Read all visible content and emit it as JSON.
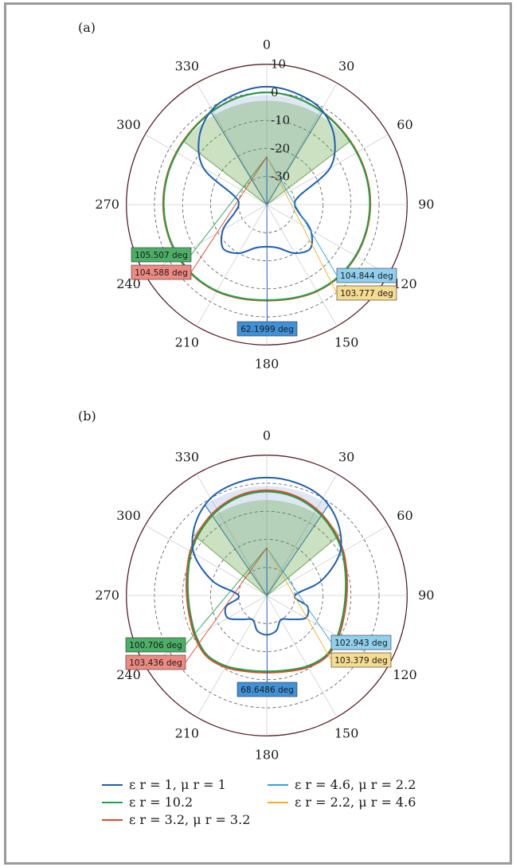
{
  "colors": {
    "series1": "#1f5fb0",
    "series2": "#22a04a",
    "series3": "#e0492b",
    "series4": "#2aa4dc",
    "series5": "#f0b024"
  },
  "legend": [
    {
      "text": "ε r = 1, μ r = 1",
      "color": "#1f5fb0"
    },
    {
      "text": "ε r = 10.2",
      "color": "#22a04a"
    },
    {
      "text": "ε r = 3.2, μ r = 3.2",
      "color": "#e0492b"
    },
    {
      "text": "ε r = 4.6, μ r = 2.2",
      "color": "#2aa4dc"
    },
    {
      "text": "ε r = 2.2, μ r = 4.6",
      "color": "#f0b024"
    }
  ],
  "chart_data": [
    {
      "type": "polar",
      "panel_label": "(a)",
      "angle_ticks": [
        "0",
        "30",
        "60",
        "90",
        "120",
        "150",
        "180",
        "210",
        "240",
        "270",
        "300",
        "330"
      ],
      "radial_ticks": [
        "10",
        "0",
        "-10",
        "-20",
        "-30"
      ],
      "rlim": [
        -40,
        10
      ],
      "grid": true,
      "beamwidth_labels": [
        {
          "text": "105.507 deg",
          "color": "#4caf67",
          "series": "series2"
        },
        {
          "text": "104.588 deg",
          "color": "#ee8a82",
          "series": "series3"
        },
        {
          "text": "104.844 deg",
          "color": "#8fd0ee",
          "series": "series4"
        },
        {
          "text": "103.777 deg",
          "color": "#f6dc90",
          "series": "series5"
        },
        {
          "text": "62.1999 deg",
          "color": "#3f91d8",
          "series": "series1"
        }
      ],
      "beamwidths_deg": {
        "series1": 62.1999,
        "series2": 105.507,
        "series3": 104.588,
        "series4": 104.844,
        "series5": 103.777
      },
      "series": [
        {
          "key": "series1",
          "theta": [
            0,
            15,
            30,
            45,
            60,
            75,
            90,
            105,
            120,
            135,
            150,
            165,
            180,
            195,
            210,
            225,
            240,
            255,
            270,
            285,
            300,
            315,
            330,
            345
          ],
          "r": [
            2,
            1,
            -1,
            -6,
            -14,
            -28,
            -30,
            -28,
            -22,
            -18,
            -20,
            -24,
            -25,
            -24,
            -20,
            -18,
            -22,
            -28,
            -30,
            -28,
            -14,
            -6,
            -1,
            1
          ]
        },
        {
          "key": "series2",
          "theta": [
            0,
            15,
            30,
            45,
            60,
            75,
            90,
            105,
            120,
            135,
            150,
            165,
            180,
            195,
            210,
            225,
            240,
            255,
            270,
            285,
            300,
            315,
            330,
            345
          ],
          "r": [
            0,
            -0.5,
            -1.5,
            -2.5,
            -3,
            -3.2,
            -3.3,
            -3.4,
            -3.5,
            -3.8,
            -4.5,
            -5.5,
            -6,
            -5.5,
            -4.5,
            -3.8,
            -3.5,
            -3.4,
            -3.3,
            -3.2,
            -3,
            -2.5,
            -1.5,
            -0.5
          ]
        },
        {
          "key": "series3",
          "theta": [
            0,
            15,
            30,
            45,
            60,
            75,
            90,
            105,
            120,
            135,
            150,
            165,
            180,
            195,
            210,
            225,
            240,
            255,
            270,
            285,
            300,
            315,
            330,
            345
          ],
          "r": [
            0,
            -0.5,
            -1.4,
            -2.3,
            -2.8,
            -3,
            -3.1,
            -3.2,
            -3.3,
            -3.6,
            -4.3,
            -5.3,
            -5.8,
            -5.3,
            -4.3,
            -3.6,
            -3.3,
            -3.2,
            -3.1,
            -3,
            -2.8,
            -2.3,
            -1.4,
            -0.5
          ]
        },
        {
          "key": "series4",
          "theta": [
            0,
            15,
            30,
            45,
            60,
            75,
            90,
            105,
            120,
            135,
            150,
            165,
            180,
            195,
            210,
            225,
            240,
            255,
            270,
            285,
            300,
            315,
            330,
            345
          ],
          "r": [
            0,
            -0.5,
            -1.5,
            -2.4,
            -2.9,
            -3.1,
            -3.2,
            -3.3,
            -3.4,
            -3.7,
            -4.4,
            -5.4,
            -5.9,
            -5.4,
            -4.4,
            -3.7,
            -3.4,
            -3.3,
            -3.2,
            -3.1,
            -2.9,
            -2.4,
            -1.5,
            -0.5
          ]
        },
        {
          "key": "series5",
          "theta": [
            0,
            15,
            30,
            45,
            60,
            75,
            90,
            105,
            120,
            135,
            150,
            165,
            180,
            195,
            210,
            225,
            240,
            255,
            270,
            285,
            300,
            315,
            330,
            345
          ],
          "r": [
            0,
            -0.5,
            -1.4,
            -2.3,
            -2.8,
            -3,
            -3.1,
            -3.2,
            -3.3,
            -3.6,
            -4.3,
            -5.3,
            -5.8,
            -5.3,
            -4.3,
            -3.6,
            -3.3,
            -3.2,
            -3.1,
            -3,
            -2.8,
            -2.3,
            -1.4,
            -0.5
          ]
        }
      ]
    },
    {
      "type": "polar",
      "panel_label": "(b)",
      "angle_ticks": [
        "0",
        "30",
        "60",
        "90",
        "120",
        "150",
        "180",
        "210",
        "240",
        "270",
        "300",
        "330"
      ],
      "radial_ticks": [],
      "rlim": [
        -40,
        10
      ],
      "grid": true,
      "beamwidth_labels": [
        {
          "text": "100.706 deg",
          "color": "#4caf67",
          "series": "series2"
        },
        {
          "text": "103.436 deg",
          "color": "#ee8a82",
          "series": "series3"
        },
        {
          "text": "102.943 deg",
          "color": "#8fd0ee",
          "series": "series4"
        },
        {
          "text": "103.379 deg",
          "color": "#f6dc90",
          "series": "series5"
        },
        {
          "text": "68.6486 deg",
          "color": "#3f91d8",
          "series": "series1"
        }
      ],
      "beamwidths_deg": {
        "series1": 68.6486,
        "series2": 100.706,
        "series3": 103.436,
        "series4": 102.943,
        "series5": 103.379
      },
      "series": [
        {
          "key": "series1",
          "theta": [
            0,
            15,
            30,
            45,
            60,
            75,
            90,
            105,
            120,
            135,
            150,
            165,
            180,
            195,
            210,
            225,
            240,
            255,
            270,
            285,
            300,
            315,
            330,
            345
          ],
          "r": [
            2,
            1.5,
            0,
            -4,
            -10,
            -20,
            -30,
            -25,
            -24,
            -28,
            -30,
            -27,
            -26,
            -27,
            -30,
            -28,
            -24,
            -25,
            -30,
            -20,
            -10,
            -4,
            0,
            1.5
          ]
        },
        {
          "key": "series2",
          "theta": [
            0,
            15,
            30,
            45,
            60,
            75,
            90,
            105,
            120,
            135,
            150,
            165,
            180,
            195,
            210,
            225,
            240,
            255,
            270,
            285,
            300,
            315,
            330,
            345
          ],
          "r": [
            -3,
            -3.5,
            -5,
            -7,
            -9,
            -11,
            -12,
            -12,
            -11,
            -10,
            -11,
            -12.5,
            -13,
            -12.5,
            -11,
            -10,
            -11,
            -12,
            -12,
            -11,
            -9,
            -7,
            -5,
            -3.5
          ]
        },
        {
          "key": "series3",
          "theta": [
            0,
            15,
            30,
            45,
            60,
            75,
            90,
            105,
            120,
            135,
            150,
            165,
            180,
            195,
            210,
            225,
            240,
            255,
            270,
            285,
            300,
            315,
            330,
            345
          ],
          "r": [
            -2.5,
            -3,
            -4.5,
            -6.5,
            -8.5,
            -10.5,
            -11.5,
            -11.5,
            -10.5,
            -9.5,
            -10.5,
            -12,
            -12.5,
            -12,
            -10.5,
            -9.5,
            -10.5,
            -11.5,
            -11.5,
            -10.5,
            -8.5,
            -6.5,
            -4.5,
            -3
          ]
        },
        {
          "key": "series4",
          "theta": [
            0,
            15,
            30,
            45,
            60,
            75,
            90,
            105,
            120,
            135,
            150,
            165,
            180,
            195,
            210,
            225,
            240,
            255,
            270,
            285,
            300,
            315,
            330,
            345
          ],
          "r": [
            -2.8,
            -3.2,
            -4.7,
            -6.7,
            -8.7,
            -10.7,
            -11.7,
            -11.7,
            -10.7,
            -9.7,
            -10.7,
            -12.2,
            -12.7,
            -12.2,
            -10.7,
            -9.7,
            -10.7,
            -11.7,
            -11.7,
            -10.7,
            -8.7,
            -6.7,
            -4.7,
            -3.2
          ]
        },
        {
          "key": "series5",
          "theta": [
            0,
            15,
            30,
            45,
            60,
            75,
            90,
            105,
            120,
            135,
            150,
            165,
            180,
            195,
            210,
            225,
            240,
            255,
            270,
            285,
            300,
            315,
            330,
            345
          ],
          "r": [
            -2.6,
            -3.1,
            -4.6,
            -6.6,
            -8.6,
            -10.6,
            -11.6,
            -11.6,
            -10.6,
            -9.6,
            -10.6,
            -12.1,
            -12.6,
            -12.1,
            -10.6,
            -9.6,
            -10.6,
            -11.6,
            -11.6,
            -10.6,
            -8.6,
            -6.6,
            -4.6,
            -3.1
          ]
        }
      ]
    }
  ]
}
